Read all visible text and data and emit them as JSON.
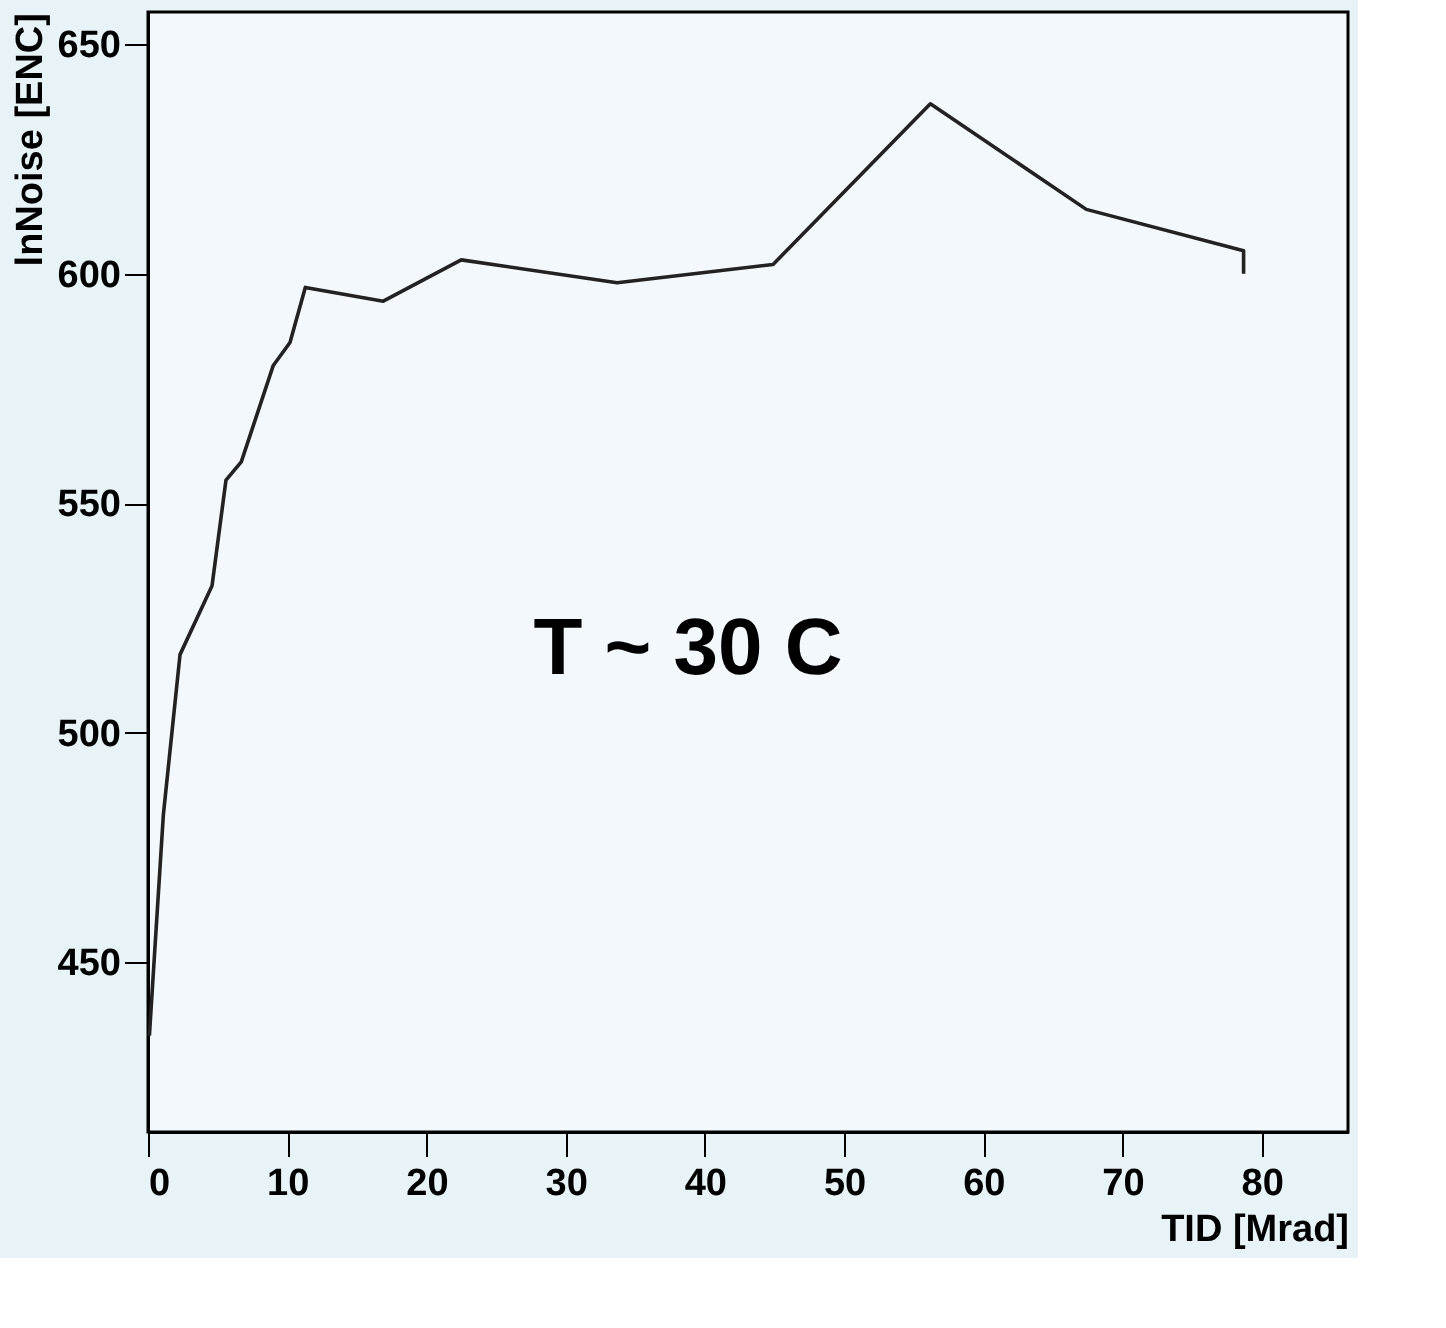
{
  "chart_data": {
    "type": "line",
    "xlabel": "TID [Mrad]",
    "ylabel": "lnNoise [ENC]",
    "annotations": [
      "T ~ 30 C"
    ],
    "x": [
      0.1,
      1.1,
      2.3,
      4.6,
      5.6,
      6.7,
      9.0,
      10.2,
      11.3,
      16.9,
      22.5,
      33.7,
      44.9,
      56.2,
      67.4,
      78.7,
      78.7
    ],
    "series": [
      {
        "color": "#222222",
        "values": [
          434,
          482,
          517,
          532,
          555,
          559,
          580,
          585,
          597,
          594,
          603,
          598,
          602,
          637,
          614,
          605,
          600
        ]
      }
    ],
    "xlim": [
      0,
      86.2
    ],
    "ylim": [
      413,
      657
    ],
    "xticks": [
      0,
      10,
      20,
      30,
      40,
      50,
      60,
      70,
      80
    ],
    "yticks": [
      450,
      500,
      550,
      600,
      650
    ],
    "grid": false,
    "marker": "none",
    "line_style": "solid"
  }
}
